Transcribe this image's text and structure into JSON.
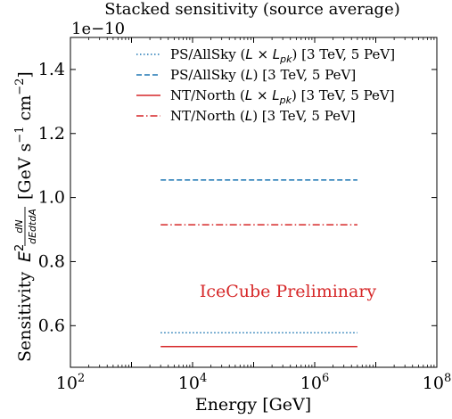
{
  "chart_data": {
    "type": "line",
    "title": "Stacked sensitivity (source average)",
    "xlabel": "Energy [GeV]",
    "ylabel": {
      "prefix": "Sensitivity",
      "e2": "E",
      "e2_exp": "2",
      "frac_num": "dN",
      "frac_den": "dEdtdA",
      "units": "[GeV s",
      "units_exp1": "−1",
      "units_mid": " cm",
      "units_exp2": "−2",
      "units_close": "]"
    },
    "x_scale": "log",
    "xlim": [
      100,
      100000000
    ],
    "ylim": [
      4.7e-11,
      1.5e-10
    ],
    "y_offset_text": "1e−10",
    "y_scale_factor": 1e-10,
    "x_ticks": [
      {
        "value": 100,
        "base": "10",
        "exp": "2"
      },
      {
        "value": 10000,
        "base": "10",
        "exp": "4"
      },
      {
        "value": 1000000,
        "base": "10",
        "exp": "6"
      },
      {
        "value": 100000000,
        "base": "10",
        "exp": "8"
      }
    ],
    "y_ticks": [
      {
        "value": 6e-11,
        "label": "0.6"
      },
      {
        "value": 8e-11,
        "label": "0.8"
      },
      {
        "value": 1e-10,
        "label": "1.0"
      },
      {
        "value": 1.2e-10,
        "label": "1.2"
      },
      {
        "value": 1.4e-10,
        "label": "1.4"
      }
    ],
    "series": [
      {
        "name": "PS/AllSky (L × L_pk) [3 TeV, 5 PeV]",
        "legend_pre": "PS/AllSky (",
        "legend_math": "L × L",
        "legend_sub": "pk",
        "legend_post": ") [3 TeV, 5 PeV]",
        "color": "#1f77b4",
        "dash": "dotted",
        "x": [
          3000,
          5000000
        ],
        "y": [
          5.78e-11,
          5.78e-11
        ]
      },
      {
        "name": "PS/AllSky (L) [3 TeV, 5 PeV]",
        "legend_pre": "PS/AllSky (",
        "legend_math": "L",
        "legend_sub": "",
        "legend_post": ") [3 TeV, 5 PeV]",
        "color": "#1f77b4",
        "dash": "dashed",
        "x": [
          3000,
          5000000
        ],
        "y": [
          1.055e-10,
          1.055e-10
        ]
      },
      {
        "name": "NT/North (L × L_pk) [3 TeV, 5 PeV]",
        "legend_pre": "NT/North (",
        "legend_math": "L × L",
        "legend_sub": "pk",
        "legend_post": ") [3 TeV, 5 PeV]",
        "color": "#d62728",
        "dash": "solid",
        "x": [
          3000,
          5000000
        ],
        "y": [
          5.35e-11,
          5.35e-11
        ]
      },
      {
        "name": "NT/North (L) [3 TeV, 5 PeV]",
        "legend_pre": "NT/North (",
        "legend_math": "L",
        "legend_sub": "",
        "legend_post": ") [3 TeV, 5 PeV]",
        "color": "#d62728",
        "dash": "dashdot",
        "x": [
          3000,
          5000000
        ],
        "y": [
          9.15e-11,
          9.15e-11
        ]
      }
    ],
    "annotation": {
      "text": "IceCube Preliminary",
      "color": "#d62728"
    },
    "legend_position": "top-right",
    "grid": false
  }
}
